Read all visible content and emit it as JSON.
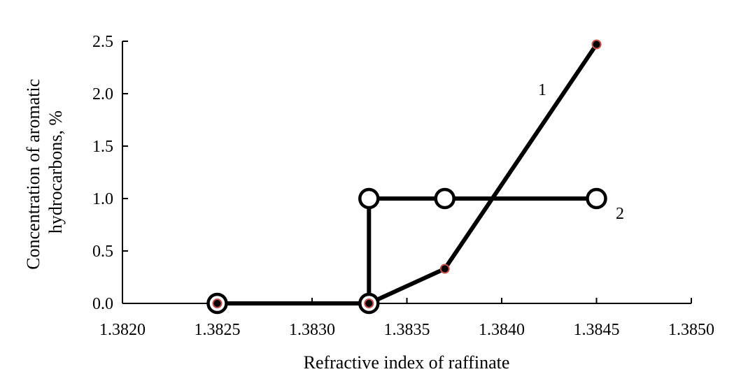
{
  "chart_data": {
    "type": "line",
    "xlabel": "Refractive index of  raffinate",
    "ylabel_lines": [
      "Concentration of aromatic",
      "hydrocarbons, %"
    ],
    "xlim": [
      1.382,
      1.385
    ],
    "ylim": [
      0.0,
      2.5
    ],
    "xticks": [
      "1.3820",
      "1.3825",
      "1.3830",
      "1.3835",
      "1.3840",
      "1.3845",
      "1.3850"
    ],
    "yticks": [
      "0.0",
      "0.5",
      "1.0",
      "1.5",
      "2.0",
      "2.5"
    ],
    "grid": false,
    "series": [
      {
        "name": "1",
        "marker": "small-dot",
        "points": [
          [
            1.3825,
            0.0
          ],
          [
            1.3833,
            0.0
          ],
          [
            1.3837,
            0.33
          ],
          [
            1.3845,
            2.47
          ]
        ]
      },
      {
        "name": "2",
        "marker": "open-circle",
        "points": [
          [
            1.3825,
            0.0
          ],
          [
            1.3833,
            0.0
          ],
          [
            1.3833,
            1.0
          ],
          [
            1.3837,
            1.0
          ],
          [
            1.3845,
            1.0
          ]
        ]
      }
    ],
    "colors": {
      "line": "#000000",
      "marker_fill": "#000000",
      "marker_edge": "#c0504d",
      "open_marker_fill": "#ffffff"
    }
  }
}
